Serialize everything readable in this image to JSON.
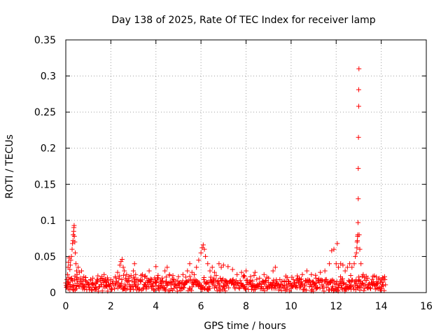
{
  "chart_data": {
    "type": "scatter",
    "title": "Day 138 of 2025, Rate Of TEC Index for receiver lamp",
    "xlabel": "GPS time / hours",
    "ylabel": "ROTI / TECUs",
    "xlim": [
      0,
      16
    ],
    "ylim": [
      0,
      0.35
    ],
    "x_ticks": [
      0,
      2,
      4,
      6,
      8,
      10,
      12,
      14,
      16
    ],
    "x_tick_labels": [
      "0",
      "2",
      "4",
      "6",
      "8",
      "10",
      "12",
      "14",
      "16"
    ],
    "y_ticks": [
      0,
      0.05,
      0.1,
      0.15,
      0.2,
      0.25,
      0.3,
      0.35
    ],
    "y_tick_labels": [
      "0",
      "0.05",
      "0.1",
      "0.15",
      "0.2",
      "0.25",
      "0.3",
      "0.35"
    ],
    "grid": true,
    "marker": "+",
    "color": "#ff0000",
    "series": [
      {
        "name": "ROTI",
        "points": [
          [
            0.02,
            0.01
          ],
          [
            0.05,
            0.018
          ],
          [
            0.08,
            0.025
          ],
          [
            0.1,
            0.035
          ],
          [
            0.12,
            0.042
          ],
          [
            0.15,
            0.048
          ],
          [
            0.18,
            0.032
          ],
          [
            0.2,
            0.038
          ],
          [
            0.22,
            0.045
          ],
          [
            0.25,
            0.05
          ],
          [
            0.28,
            0.06
          ],
          [
            0.3,
            0.068
          ],
          [
            0.32,
            0.072
          ],
          [
            0.33,
            0.08
          ],
          [
            0.35,
            0.085
          ],
          [
            0.36,
            0.09
          ],
          [
            0.37,
            0.093
          ],
          [
            0.38,
            0.078
          ],
          [
            0.4,
            0.07
          ],
          [
            0.42,
            0.055
          ],
          [
            0.45,
            0.04
          ],
          [
            0.48,
            0.03
          ],
          [
            0.5,
            0.025
          ],
          [
            0.55,
            0.035
          ],
          [
            0.6,
            0.028
          ],
          [
            0.65,
            0.02
          ],
          [
            0.7,
            0.03
          ],
          [
            0.75,
            0.018
          ],
          [
            0.8,
            0.022
          ],
          [
            0.9,
            0.015
          ],
          [
            1.0,
            0.012
          ],
          [
            1.1,
            0.018
          ],
          [
            1.2,
            0.02
          ],
          [
            1.4,
            0.015
          ],
          [
            1.6,
            0.022
          ],
          [
            1.7,
            0.025
          ],
          [
            1.8,
            0.015
          ],
          [
            2.0,
            0.018
          ],
          [
            2.2,
            0.022
          ],
          [
            2.3,
            0.028
          ],
          [
            2.4,
            0.038
          ],
          [
            2.45,
            0.043
          ],
          [
            2.5,
            0.046
          ],
          [
            2.55,
            0.035
          ],
          [
            2.6,
            0.03
          ],
          [
            2.7,
            0.025
          ],
          [
            2.8,
            0.02
          ],
          [
            3.0,
            0.03
          ],
          [
            3.05,
            0.04
          ],
          [
            3.1,
            0.025
          ],
          [
            3.2,
            0.018
          ],
          [
            3.4,
            0.025
          ],
          [
            3.5,
            0.022
          ],
          [
            3.6,
            0.02
          ],
          [
            3.7,
            0.03
          ],
          [
            3.8,
            0.018
          ],
          [
            4.0,
            0.036
          ],
          [
            4.1,
            0.02
          ],
          [
            4.2,
            0.015
          ],
          [
            4.4,
            0.03
          ],
          [
            4.5,
            0.035
          ],
          [
            4.6,
            0.025
          ],
          [
            4.8,
            0.018
          ],
          [
            5.0,
            0.022
          ],
          [
            5.2,
            0.025
          ],
          [
            5.4,
            0.03
          ],
          [
            5.5,
            0.04
          ],
          [
            5.6,
            0.028
          ],
          [
            5.7,
            0.025
          ],
          [
            5.8,
            0.035
          ],
          [
            5.9,
            0.045
          ],
          [
            6.0,
            0.055
          ],
          [
            6.05,
            0.062
          ],
          [
            6.1,
            0.066
          ],
          [
            6.15,
            0.06
          ],
          [
            6.2,
            0.05
          ],
          [
            6.3,
            0.04
          ],
          [
            6.4,
            0.03
          ],
          [
            6.5,
            0.035
          ],
          [
            6.6,
            0.028
          ],
          [
            6.8,
            0.04
          ],
          [
            6.9,
            0.035
          ],
          [
            7.0,
            0.038
          ],
          [
            7.2,
            0.036
          ],
          [
            7.4,
            0.032
          ],
          [
            7.6,
            0.025
          ],
          [
            7.8,
            0.028
          ],
          [
            8.0,
            0.03
          ],
          [
            8.2,
            0.022
          ],
          [
            8.4,
            0.028
          ],
          [
            8.6,
            0.02
          ],
          [
            8.8,
            0.025
          ],
          [
            9.0,
            0.02
          ],
          [
            9.2,
            0.03
          ],
          [
            9.3,
            0.035
          ],
          [
            9.5,
            0.018
          ],
          [
            9.7,
            0.015
          ],
          [
            9.9,
            0.012
          ],
          [
            10.1,
            0.018
          ],
          [
            10.3,
            0.02
          ],
          [
            10.5,
            0.025
          ],
          [
            10.7,
            0.03
          ],
          [
            10.9,
            0.025
          ],
          [
            11.1,
            0.02
          ],
          [
            11.3,
            0.028
          ],
          [
            11.5,
            0.03
          ],
          [
            11.7,
            0.04
          ],
          [
            11.8,
            0.058
          ],
          [
            11.9,
            0.06
          ],
          [
            12.0,
            0.04
          ],
          [
            12.05,
            0.068
          ],
          [
            12.1,
            0.035
          ],
          [
            12.2,
            0.04
          ],
          [
            12.3,
            0.038
          ],
          [
            12.4,
            0.03
          ],
          [
            12.5,
            0.035
          ],
          [
            12.6,
            0.04
          ],
          [
            12.7,
            0.035
          ],
          [
            12.8,
            0.04
          ],
          [
            12.85,
            0.05
          ],
          [
            12.9,
            0.055
          ],
          [
            12.92,
            0.062
          ],
          [
            12.93,
            0.07
          ],
          [
            12.94,
            0.072
          ],
          [
            12.95,
            0.078
          ],
          [
            12.96,
            0.08
          ],
          [
            12.97,
            0.097
          ],
          [
            12.98,
            0.13
          ],
          [
            12.98,
            0.172
          ],
          [
            12.99,
            0.215
          ],
          [
            13.0,
            0.258
          ],
          [
            13.0,
            0.281
          ],
          [
            13.01,
            0.31
          ],
          [
            13.02,
            0.08
          ],
          [
            13.05,
            0.06
          ],
          [
            13.1,
            0.04
          ],
          [
            13.2,
            0.025
          ],
          [
            13.4,
            0.02
          ],
          [
            13.6,
            0.018
          ],
          [
            13.8,
            0.015
          ],
          [
            14.0,
            0.018
          ],
          [
            14.1,
            0.02
          ],
          [
            14.15,
            0.022
          ]
        ]
      }
    ],
    "annotations": "dense band of points between 0 and about 0.02 across 0-14.2 h"
  }
}
